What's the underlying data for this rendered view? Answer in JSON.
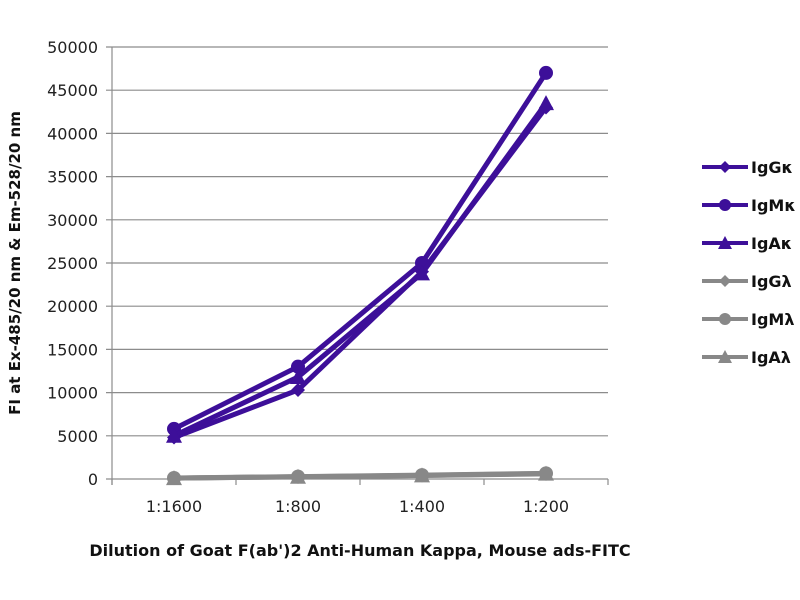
{
  "chart_data": {
    "type": "line",
    "title": "",
    "xlabel": "Dilution of Goat F(ab')2 Anti-Human Kappa, Mouse ads-FITC",
    "ylabel": "FI at Ex-485/20 nm & Em-528/20 nm",
    "categories": [
      "1:1600",
      "1:800",
      "1:400",
      "1:200"
    ],
    "ylim": [
      0,
      50000
    ],
    "yticks": [
      0,
      5000,
      10000,
      15000,
      20000,
      25000,
      30000,
      35000,
      40000,
      45000,
      50000
    ],
    "grid": true,
    "legend_position": "right",
    "series": [
      {
        "name": "IgGκ",
        "marker": "diamond",
        "color": "#3d0f99",
        "values": [
          4800,
          10300,
          24000,
          43000
        ]
      },
      {
        "name": "IgMκ",
        "marker": "circle",
        "color": "#3d0f99",
        "values": [
          5800,
          13000,
          25000,
          47000
        ]
      },
      {
        "name": "IgAκ",
        "marker": "triangle",
        "color": "#3d0f99",
        "values": [
          5000,
          11800,
          23800,
          43500
        ]
      },
      {
        "name": "IgGλ",
        "marker": "diamond",
        "color": "#888888",
        "values": [
          100,
          250,
          400,
          600
        ]
      },
      {
        "name": "IgMλ",
        "marker": "circle",
        "color": "#888888",
        "values": [
          120,
          280,
          450,
          650
        ]
      },
      {
        "name": "IgAλ",
        "marker": "triangle",
        "color": "#888888",
        "values": [
          100,
          260,
          420,
          620
        ]
      }
    ]
  }
}
